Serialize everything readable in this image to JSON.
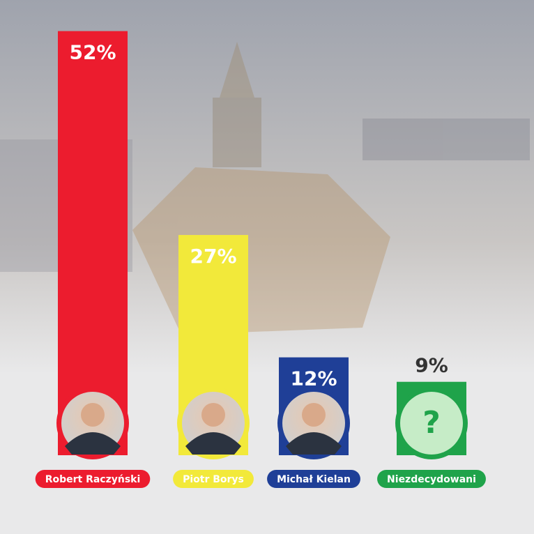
{
  "chart_data": {
    "type": "bar",
    "categories": [
      "Robert Raczyński",
      "Piotr Borys",
      "Michał Kielan",
      "Niezdecydowani"
    ],
    "values": [
      52,
      27,
      12,
      9
    ],
    "value_labels": [
      "52%",
      "27%",
      "12%",
      "9%"
    ],
    "colors": [
      "#ec1c2e",
      "#f2e93a",
      "#1f3f97",
      "#1fa34a"
    ],
    "annotation": "?"
  }
}
